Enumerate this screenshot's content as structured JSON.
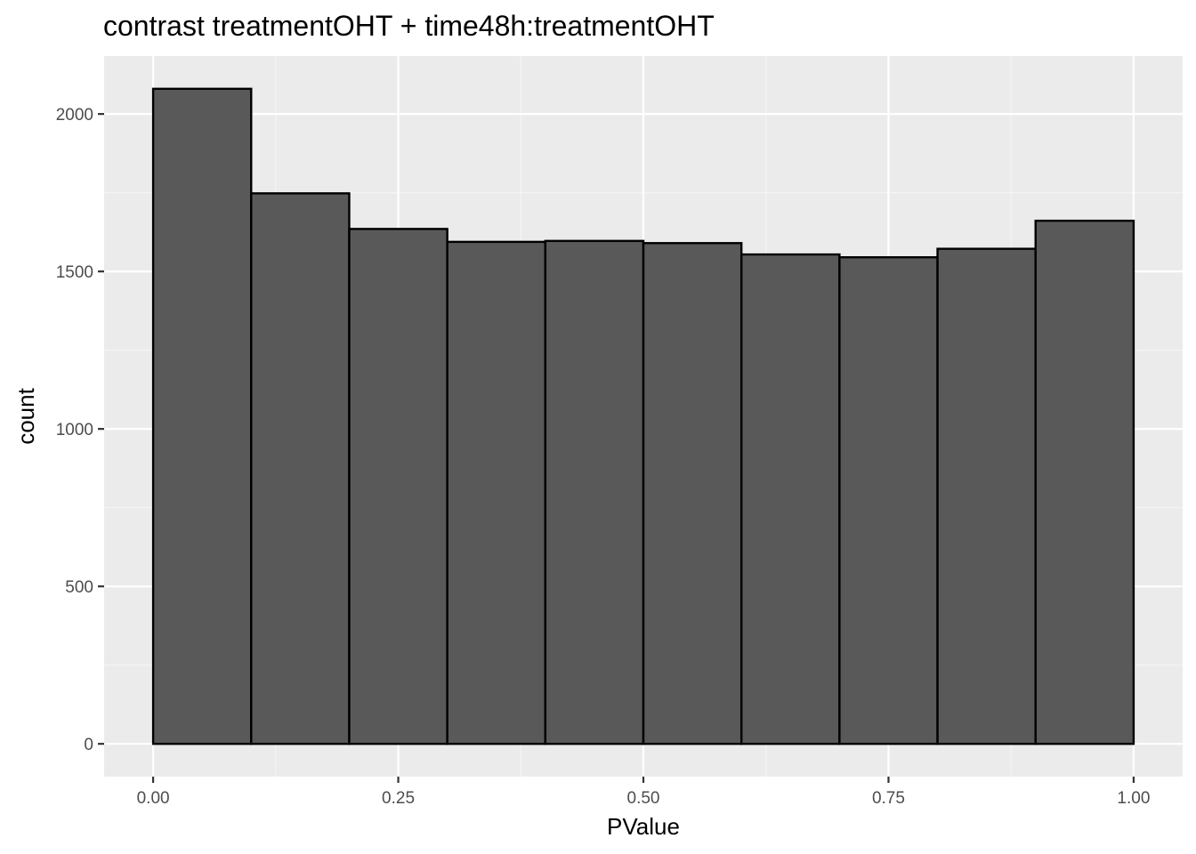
{
  "chart_data": {
    "type": "bar",
    "subtype": "histogram",
    "title": "contrast treatmentOHT + time48h:treatmentOHT",
    "xlabel": "PValue",
    "ylabel": "count",
    "bins": [
      {
        "x0": 0.0,
        "x1": 0.1,
        "count": 2080
      },
      {
        "x0": 0.1,
        "x1": 0.2,
        "count": 1748
      },
      {
        "x0": 0.2,
        "x1": 0.3,
        "count": 1635
      },
      {
        "x0": 0.3,
        "x1": 0.4,
        "count": 1594
      },
      {
        "x0": 0.4,
        "x1": 0.5,
        "count": 1597
      },
      {
        "x0": 0.5,
        "x1": 0.6,
        "count": 1590
      },
      {
        "x0": 0.6,
        "x1": 0.7,
        "count": 1554
      },
      {
        "x0": 0.7,
        "x1": 0.8,
        "count": 1545
      },
      {
        "x0": 0.8,
        "x1": 0.9,
        "count": 1572
      },
      {
        "x0": 0.9,
        "x1": 1.0,
        "count": 1661
      }
    ],
    "xlim": [
      -0.05,
      1.05
    ],
    "ylim": [
      -104,
      2184
    ],
    "x_ticks": [
      0.0,
      0.25,
      0.5,
      0.75,
      1.0
    ],
    "x_tick_labels": [
      "0.00",
      "0.25",
      "0.50",
      "0.75",
      "1.00"
    ],
    "y_ticks": [
      0,
      500,
      1000,
      1500,
      2000
    ],
    "y_tick_labels": [
      "0",
      "500",
      "1000",
      "1500",
      "2000"
    ],
    "grid": true,
    "colors": {
      "panel_background": "#EBEBEB",
      "grid_major": "#FFFFFF",
      "grid_minor": "#F5F5F5",
      "bar_fill": "#595959",
      "bar_outline": "#000000",
      "tick_text": "#4D4D4D",
      "tick_mark": "#333333"
    }
  }
}
